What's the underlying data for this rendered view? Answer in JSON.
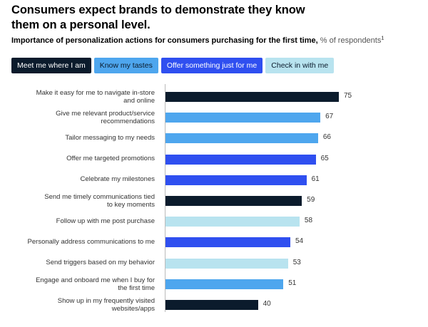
{
  "header": {
    "title": "Consumers expect brands to demonstrate they know them on a personal level.",
    "subtitle_bold": "Importance of personalization actions for consumers purchasing for the first time,",
    "subtitle_unit": " % of respondents",
    "footnote_marker": "1"
  },
  "legend": [
    {
      "label": "Meet me where I am",
      "color": "#0b1b2c",
      "text_color": "#ffffff"
    },
    {
      "label": "Know my tastes",
      "color": "#4ea6ee",
      "text_color": "#0b1b2c"
    },
    {
      "label": "Offer something just for me",
      "color": "#2f4ff0",
      "text_color": "#ffffff"
    },
    {
      "label": "Check in with me",
      "color": "#b8e3ef",
      "text_color": "#0b1b2c"
    }
  ],
  "chart_data": {
    "type": "bar",
    "orientation": "horizontal",
    "title": "Importance of personalization actions for consumers purchasing for the first time",
    "xlabel": "% of respondents",
    "ylabel": "",
    "xlim": [
      0,
      100
    ],
    "grid": false,
    "legend_position": "top-left",
    "categories": [
      "Make it easy for me to navigate in-store and online",
      "Give me relevant product/service recommendations",
      "Tailor messaging to my needs",
      "Offer me targeted promotions",
      "Celebrate my milestones",
      "Send me timely communications tied to key moments",
      "Follow up with me post purchase",
      "Personally address communications to me",
      "Send triggers based on my behavior",
      "Engage and onboard me when I buy for the first time",
      "Show up in my frequently visited websites/apps"
    ],
    "category_lines": [
      [
        "Make it easy for me to navigate in-store",
        "and online"
      ],
      [
        "Give me relevant product/service",
        "recommendations"
      ],
      [
        "Tailor messaging to my needs"
      ],
      [
        "Offer me targeted promotions"
      ],
      [
        "Celebrate my milestones"
      ],
      [
        "Send me timely communications tied",
        "to key moments"
      ],
      [
        "Follow up with me post purchase"
      ],
      [
        "Personally address communications to me"
      ],
      [
        "Send triggers based on my behavior"
      ],
      [
        "Engage and onboard me when I buy for",
        "the first time"
      ],
      [
        "Show up in my frequently visited",
        "websites/apps"
      ]
    ],
    "values": [
      75,
      67,
      66,
      65,
      61,
      59,
      58,
      54,
      53,
      51,
      40
    ],
    "groups": [
      "Meet me where I am",
      "Know my tastes",
      "Know my tastes",
      "Offer something just for me",
      "Offer something just for me",
      "Meet me where I am",
      "Check in with me",
      "Offer something just for me",
      "Check in with me",
      "Know my tastes",
      "Meet me where I am"
    ]
  }
}
